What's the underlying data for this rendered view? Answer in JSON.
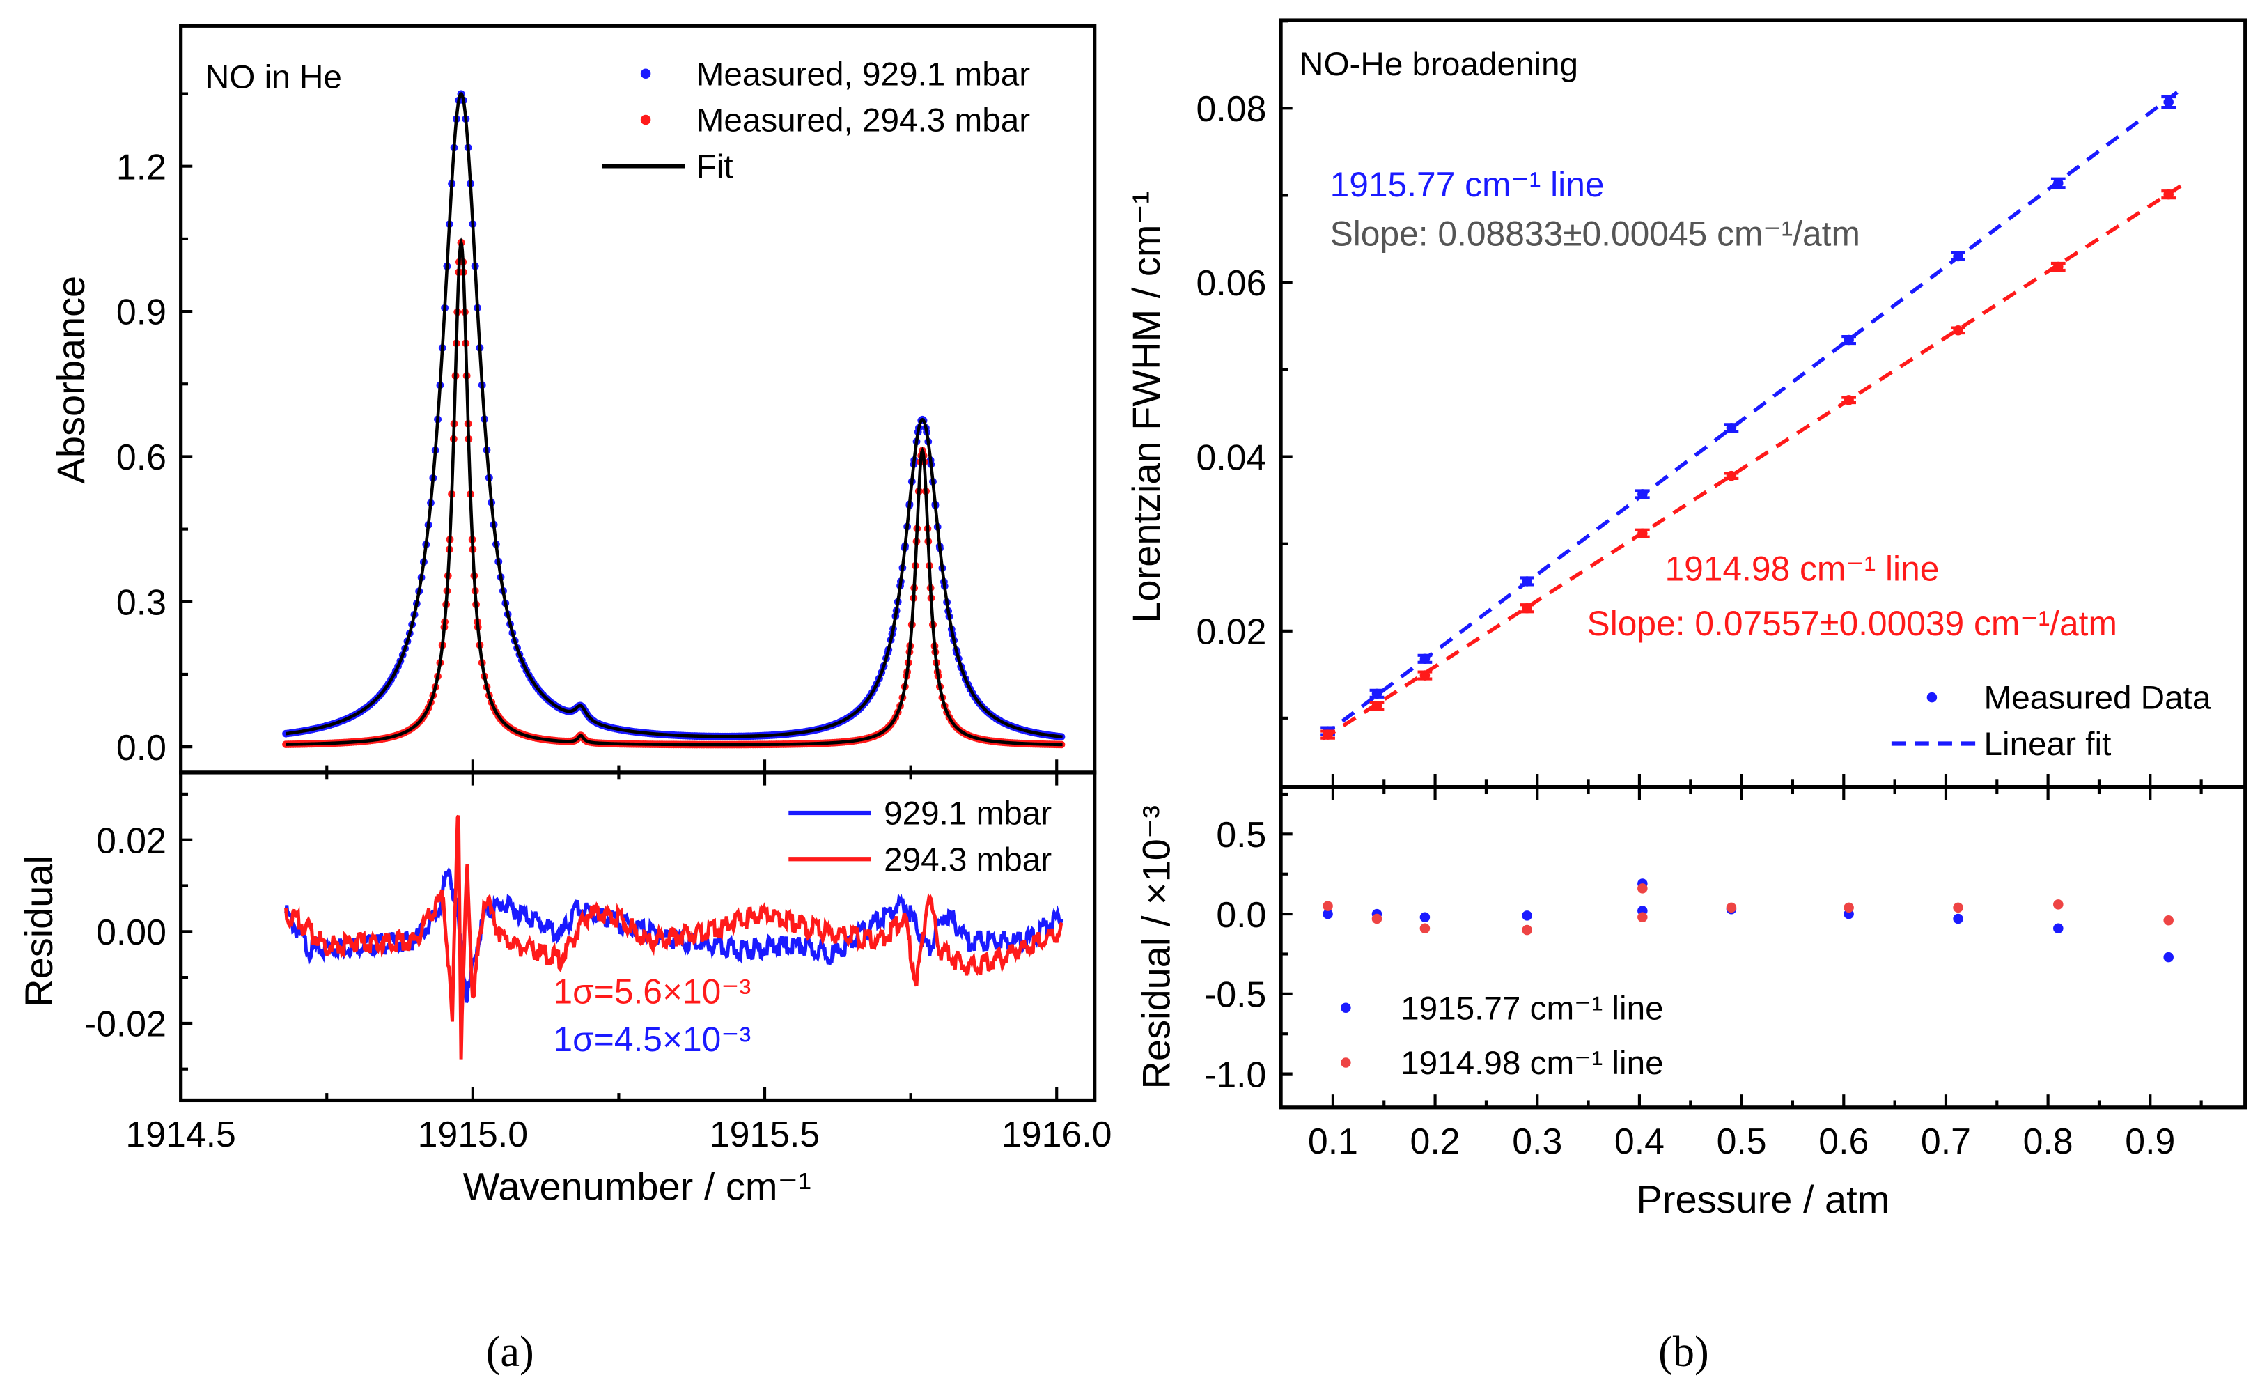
{
  "chart_data": [
    {
      "id": "a-top",
      "type": "line",
      "panel_label": "NO in He",
      "ylabel": "Absorbance",
      "xlim": [
        1914.5,
        1916.065
      ],
      "ylim": [
        -0.053,
        1.49
      ],
      "yticks": [
        0.0,
        0.3,
        0.6,
        0.9,
        1.2
      ],
      "ytick_labels": [
        "0.0",
        "0.3",
        "0.6",
        "0.9",
        "1.2"
      ],
      "x_range": [
        1914.68,
        1916.01
      ],
      "legend": {
        "position": "top-right",
        "entries": [
          "Measured, 929.1 mbar",
          "Measured, 294.3 mbar",
          "Fit"
        ]
      },
      "series": [
        {
          "name": "Measured, 929.1 mbar",
          "color": "#1a1aff",
          "baseline": 0.003,
          "peaks": [
            {
              "center": 1914.98,
              "amplitude": 1.345,
              "hwhm": 0.04
            },
            {
              "center": 1915.185,
              "amplitude": 0.03,
              "hwhm": 0.012
            },
            {
              "center": 1915.77,
              "amplitude": 0.67,
              "hwhm": 0.037
            }
          ]
        },
        {
          "name": "Measured, 294.3 mbar",
          "color": "#ff1a1a",
          "baseline": 0.002,
          "peaks": [
            {
              "center": 1914.98,
              "amplitude": 1.04,
              "hwhm": 0.016
            },
            {
              "center": 1915.185,
              "amplitude": 0.015,
              "hwhm": 0.006
            },
            {
              "center": 1915.77,
              "amplitude": 0.61,
              "hwhm": 0.015
            }
          ]
        }
      ],
      "fit_color": "#000000"
    },
    {
      "id": "a-bottom",
      "type": "line",
      "xlabel": "Wavenumber / cm⁻¹",
      "ylabel": "Residual",
      "xlim": [
        1914.5,
        1916.065
      ],
      "ylim": [
        -0.0368,
        0.0347
      ],
      "xticks": [
        1914.5,
        1915.0,
        1915.5,
        1916.0
      ],
      "xtick_labels": [
        "1914.5",
        "1915.0",
        "1915.5",
        "1916.0"
      ],
      "yticks": [
        -0.02,
        0.0,
        0.02
      ],
      "ytick_labels": [
        "-0.02",
        "0.00",
        "0.02"
      ],
      "legend": {
        "position": "top-right",
        "entries": [
          "929.1 mbar",
          "294.3 mbar"
        ]
      },
      "annotations": {
        "red_sigma": "1σ=5.6×10⁻³",
        "blue_sigma": "1σ=4.5×10⁻³"
      },
      "series": [
        {
          "name": "929.1 mbar",
          "color": "#1a1aff",
          "x": [
            1914.68,
            1914.72,
            1914.8,
            1914.9,
            1914.94,
            1914.96,
            1914.975,
            1914.99,
            1915.0,
            1915.02,
            1915.05,
            1915.1,
            1915.15,
            1915.18,
            1915.25,
            1915.35,
            1915.45,
            1915.55,
            1915.62,
            1915.7,
            1915.74,
            1915.78,
            1915.81,
            1915.85,
            1915.95,
            1916.01
          ],
          "y": [
            0.004,
            -0.004,
            -0.003,
            -0.002,
            0.004,
            0.014,
            0.002,
            -0.015,
            -0.008,
            0.004,
            0.006,
            0.003,
            -0.001,
            0.005,
            0.002,
            -0.002,
            -0.004,
            -0.003,
            -0.005,
            0.003,
            0.006,
            -0.004,
            0.004,
            -0.002,
            -0.002,
            0.004
          ]
        },
        {
          "name": "294.3 mbar",
          "color": "#ff1a1a",
          "x": [
            1914.68,
            1914.75,
            1914.9,
            1914.95,
            1914.965,
            1914.975,
            1914.98,
            1914.99,
            1915.0,
            1915.02,
            1915.05,
            1915.1,
            1915.15,
            1915.2,
            1915.25,
            1915.3,
            1915.4,
            1915.5,
            1915.6,
            1915.7,
            1915.74,
            1915.76,
            1915.78,
            1915.8,
            1915.85,
            1915.9,
            1916.01
          ],
          "y": [
            0.004,
            -0.003,
            -0.002,
            0.008,
            -0.02,
            0.032,
            -0.026,
            0.015,
            -0.015,
            0.008,
            -0.002,
            -0.004,
            -0.006,
            0.004,
            0.003,
            -0.002,
            0.0,
            0.004,
            0.0,
            -0.002,
            0.003,
            -0.012,
            0.008,
            -0.004,
            -0.008,
            -0.006,
            0.0
          ]
        }
      ]
    },
    {
      "id": "b-top",
      "type": "scatter",
      "panel_label": "NO-He broadening",
      "ylabel": "Lorentzian FWHM / cm⁻¹",
      "xlim": [
        0.049,
        0.993
      ],
      "ylim": [
        0.0021,
        0.0901
      ],
      "yticks": [
        0.02,
        0.04,
        0.06,
        0.08
      ],
      "ytick_labels": [
        "0.02",
        "0.04",
        "0.06",
        "0.08"
      ],
      "legend": {
        "position": "bottom-right",
        "entries": [
          "Measured Data",
          "Linear fit"
        ]
      },
      "series": [
        {
          "name": "1915.77 cm⁻¹ line",
          "color": "#1a1aff",
          "slope_text": "Slope: 0.08833±0.00045 cm⁻¹/atm",
          "slope": 0.08833,
          "intercept": 0.0,
          "x": [
            0.095,
            0.143,
            0.19,
            0.29,
            0.403,
            0.49,
            0.605,
            0.712,
            0.81,
            0.918
          ],
          "y": [
            0.0085,
            0.0128,
            0.0168,
            0.0257,
            0.0357,
            0.0433,
            0.0534,
            0.063,
            0.0714,
            0.0807
          ],
          "err": [
            0.0004,
            0.0004,
            0.0004,
            0.0004,
            0.0004,
            0.0004,
            0.0004,
            0.0004,
            0.0005,
            0.0006
          ]
        },
        {
          "name": "1914.98 cm⁻¹ line",
          "color": "#ff1a1a",
          "slope_text": "Slope: 0.07557±0.00039 cm⁻¹/atm",
          "slope": 0.07557,
          "intercept": 0.0008,
          "x": [
            0.095,
            0.143,
            0.19,
            0.29,
            0.403,
            0.49,
            0.605,
            0.712,
            0.81,
            0.918
          ],
          "y": [
            0.0081,
            0.0114,
            0.0149,
            0.0226,
            0.0312,
            0.0378,
            0.0465,
            0.0545,
            0.0618,
            0.0701
          ],
          "err": [
            0.0004,
            0.0004,
            0.0004,
            0.0004,
            0.0004,
            0.0003,
            0.0003,
            0.0003,
            0.0004,
            0.0004
          ]
        }
      ],
      "slope_label_color": "#555555"
    },
    {
      "id": "b-bottom",
      "type": "scatter",
      "xlabel": "Pressure / atm",
      "ylabel": "Residual / ×10⁻³",
      "xlim": [
        0.049,
        0.993
      ],
      "ylim": [
        -1.21,
        0.795
      ],
      "xticks": [
        0.1,
        0.2,
        0.3,
        0.4,
        0.5,
        0.6,
        0.7,
        0.8,
        0.9
      ],
      "xtick_labels": [
        "0.1",
        "0.2",
        "0.3",
        "0.4",
        "0.5",
        "0.6",
        "0.7",
        "0.8",
        "0.9"
      ],
      "yticks": [
        -1.0,
        -0.5,
        0.0,
        0.5
      ],
      "ytick_labels": [
        "-1.0",
        "-0.5",
        "0.0",
        "0.5"
      ],
      "legend": {
        "position": "bottom-left",
        "entries": [
          "1915.77 cm⁻¹ line",
          "1914.98 cm⁻¹ line"
        ]
      },
      "series": [
        {
          "name": "1915.77 cm⁻¹ line",
          "color": "#1a1aff",
          "x": [
            0.095,
            0.143,
            0.19,
            0.29,
            0.403,
            0.403,
            0.49,
            0.605,
            0.712,
            0.81,
            0.918
          ],
          "y": [
            0.0,
            0.0,
            -0.02,
            -0.01,
            0.19,
            0.02,
            0.03,
            0.0,
            -0.03,
            -0.09,
            -0.27
          ]
        },
        {
          "name": "1914.98 cm⁻¹ line",
          "color": "#ee4444",
          "x": [
            0.095,
            0.143,
            0.19,
            0.29,
            0.403,
            0.403,
            0.49,
            0.605,
            0.712,
            0.81,
            0.918
          ],
          "y": [
            0.05,
            -0.03,
            -0.09,
            -0.1,
            0.16,
            -0.02,
            0.04,
            0.04,
            0.04,
            0.06,
            -0.04
          ]
        }
      ]
    }
  ],
  "captions": {
    "a": "(a)",
    "b": "(b)"
  }
}
